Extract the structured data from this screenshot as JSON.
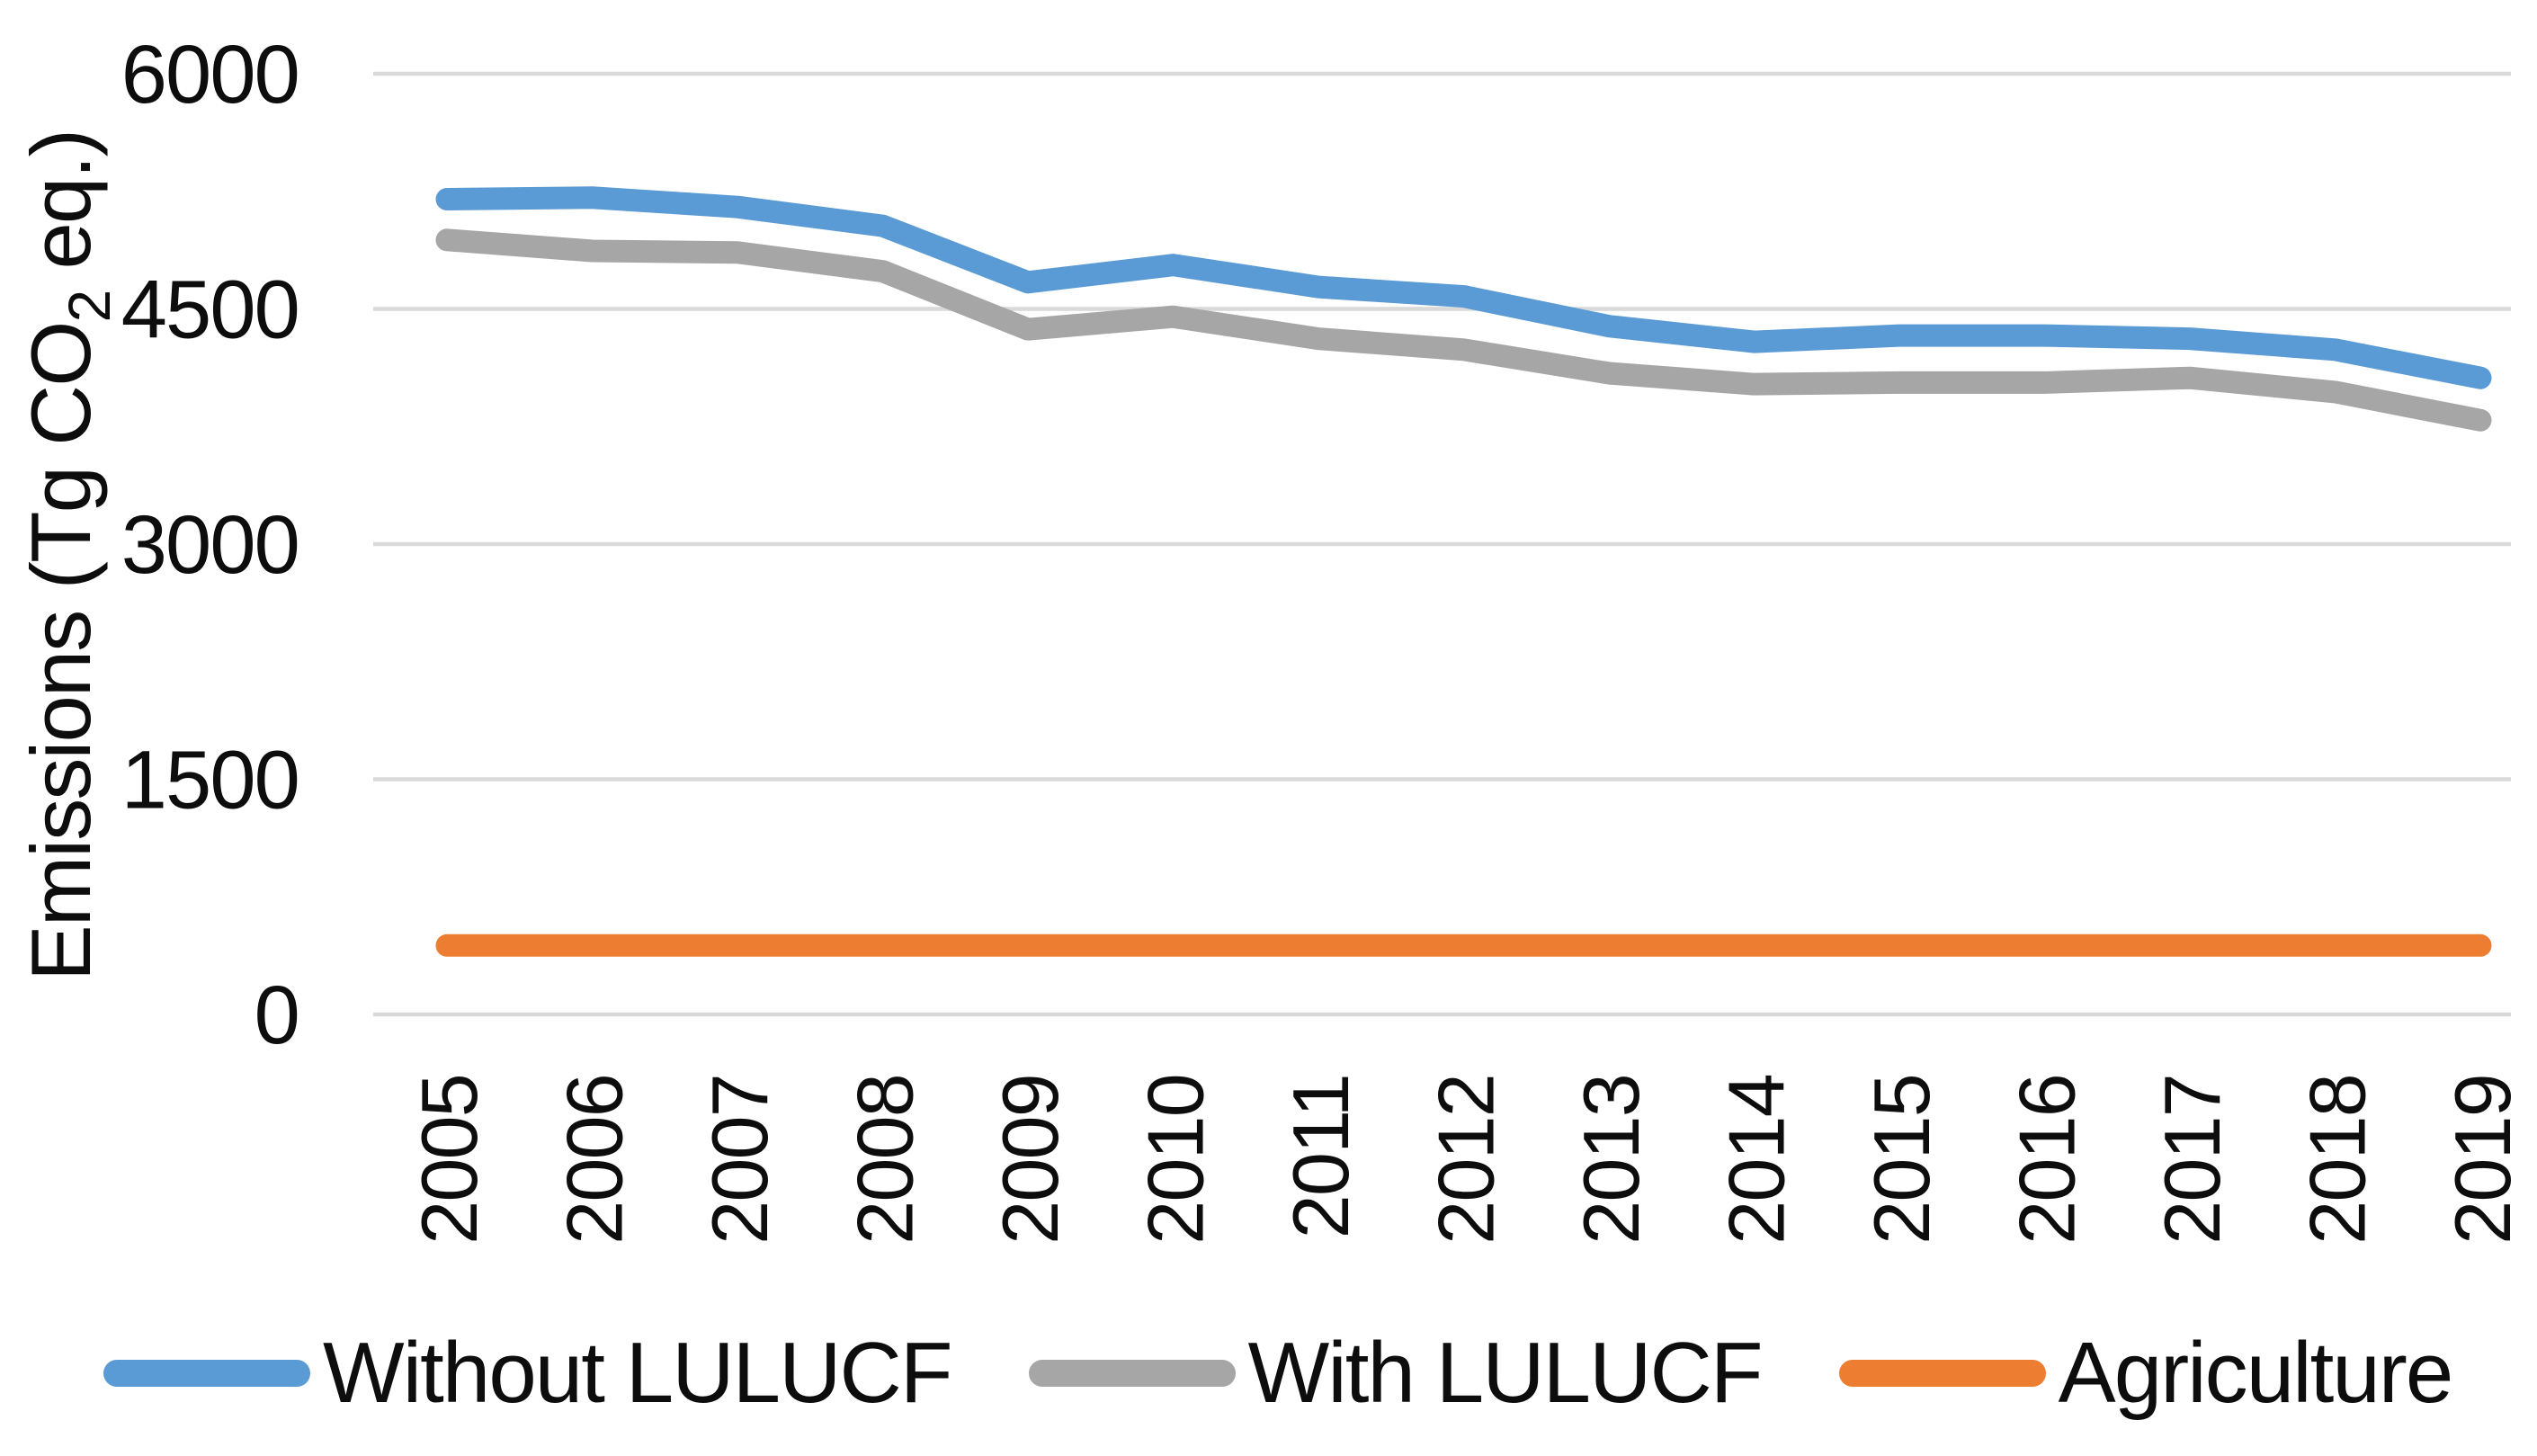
{
  "figure": {
    "background": "#ffffff",
    "text_color": "#0d0d0d",
    "gridline_color": "#D9D9D9"
  },
  "axis": {
    "y_title_pre": "Emissions (Tg CO",
    "y_title_sub": "2",
    "y_title_post": " eq.)"
  },
  "legend": {
    "items": [
      {
        "label": "Without LULUCF",
        "color": "#5B9BD5"
      },
      {
        "label": "With LULUCF",
        "color": "#A6A6A6"
      },
      {
        "label": "Agriculture",
        "color": "#ED7D31"
      }
    ]
  },
  "chart_data": {
    "type": "line",
    "x": [
      "2005",
      "2006",
      "2007",
      "2008",
      "2009",
      "2010",
      "2011",
      "2012",
      "2013",
      "2014",
      "2015",
      "2016",
      "2017",
      "2018",
      "2019"
    ],
    "series": [
      {
        "name": "Without LULUCF",
        "color": "#5B9BD5",
        "values": [
          5200,
          5210,
          5150,
          5030,
          4670,
          4780,
          4640,
          4580,
          4390,
          4290,
          4330,
          4330,
          4310,
          4240,
          4060
        ]
      },
      {
        "name": "With LULUCF",
        "color": "#A6A6A6",
        "values": [
          4940,
          4870,
          4860,
          4740,
          4370,
          4450,
          4310,
          4240,
          4090,
          4020,
          4030,
          4030,
          4060,
          3970,
          3790
        ]
      },
      {
        "name": "Agriculture",
        "color": "#ED7D31",
        "values": [
          440,
          440,
          440,
          440,
          440,
          440,
          440,
          440,
          440,
          440,
          440,
          440,
          440,
          440,
          440
        ]
      }
    ],
    "title": "",
    "xlabel": "",
    "ylabel": "Emissions (Tg CO2 eq.)",
    "yticks": [
      0,
      1500,
      3000,
      4500,
      6000
    ],
    "ylim": [
      0,
      6000
    ],
    "grid": "horizontal-only",
    "legend_position": "bottom"
  }
}
